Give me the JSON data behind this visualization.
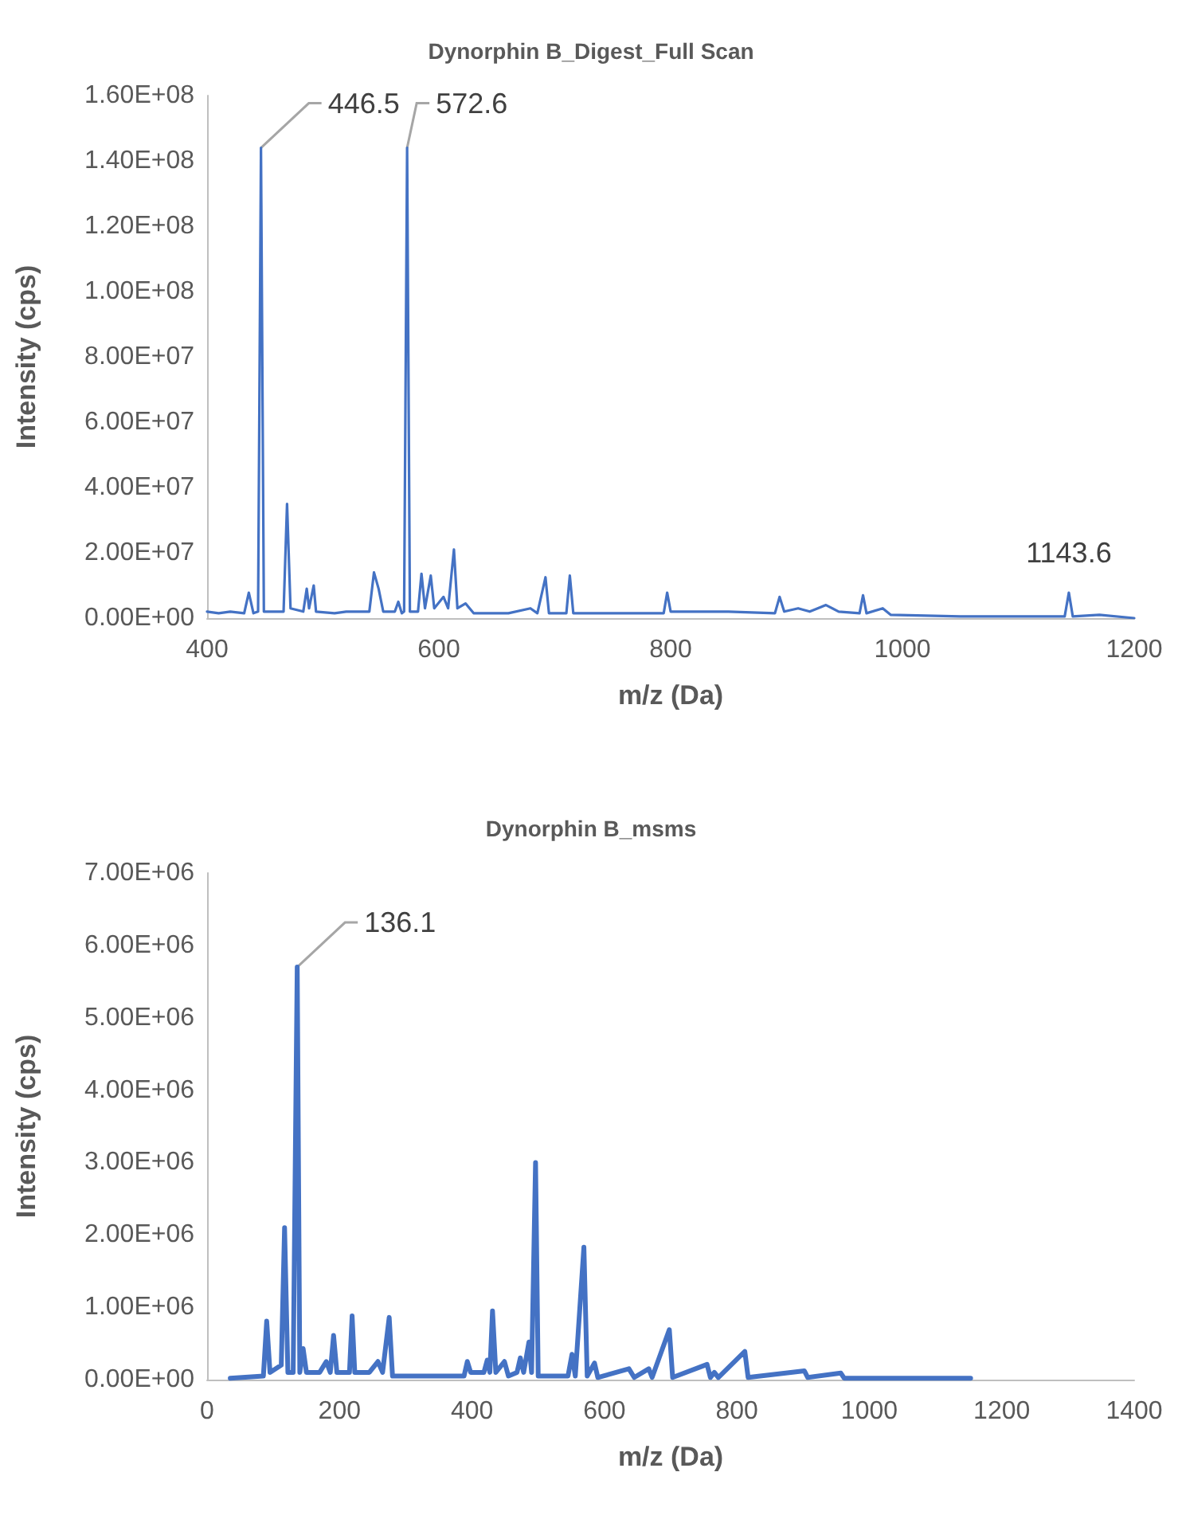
{
  "chart_data": [
    {
      "type": "line",
      "title": "Dynorphin B_Digest_Full Scan",
      "xlabel": "m/z (Da)",
      "ylabel": "Intensity (cps)",
      "x": [
        400,
        410,
        420,
        432,
        436,
        440,
        444,
        446.5,
        449,
        466,
        469,
        472,
        483,
        486,
        488,
        492,
        494,
        510,
        520,
        540,
        544,
        548,
        552,
        562,
        565,
        568,
        570,
        572.6,
        575,
        582,
        585,
        588,
        593,
        596,
        604,
        608,
        613,
        616,
        623,
        630,
        660,
        679,
        685,
        692,
        695,
        710,
        713,
        716,
        760,
        794,
        797,
        800,
        850,
        890,
        894,
        898,
        910,
        920,
        934,
        945,
        963,
        966,
        969,
        983,
        990,
        1050,
        1140,
        1143.6,
        1147,
        1170,
        1200
      ],
      "series": [
        {
          "color": "#4472c4",
          "values": [
            2000000.0,
            1500000.0,
            2000000.0,
            1500000.0,
            7800000.0,
            1500000.0,
            2000000.0,
            144000000.0,
            2000000.0,
            2000000.0,
            35000000.0,
            3000000.0,
            2000000.0,
            9000000.0,
            3000000.0,
            10000000.0,
            2000000.0,
            1500000.0,
            2000000.0,
            2000000.0,
            14000000.0,
            9000000.0,
            2000000.0,
            2000000.0,
            5000000.0,
            1500000.0,
            2000000.0,
            144000000.0,
            2000000.0,
            2000000.0,
            13600000.0,
            3000000.0,
            13000000.0,
            3000000.0,
            6500000.0,
            3000000.0,
            21000000.0,
            3000000.0,
            4500000.0,
            1500000.0,
            1500000.0,
            3000000.0,
            1500000.0,
            12500000.0,
            1500000.0,
            1500000.0,
            13000000.0,
            1500000.0,
            1500000.0,
            1500000.0,
            7800000.0,
            2000000.0,
            2000000.0,
            1500000.0,
            6500000.0,
            2000000.0,
            3000000.0,
            2000000.0,
            4000000.0,
            2000000.0,
            1500000.0,
            7000000.0,
            1500000.0,
            3000000.0,
            1000000.0,
            500000.0,
            500000.0,
            7800000.0,
            500000.0,
            1000000.0,
            0
          ]
        }
      ],
      "xlim": [
        400,
        1200
      ],
      "xticks": [
        400,
        600,
        800,
        1000,
        1200
      ],
      "ylim": [
        0,
        160000000.0
      ],
      "yticks": [
        {
          "value": 0,
          "label": "0.00E+00"
        },
        {
          "value": 20000000.0,
          "label": "2.00E+07"
        },
        {
          "value": 40000000.0,
          "label": "4.00E+07"
        },
        {
          "value": 60000000.0,
          "label": "6.00E+07"
        },
        {
          "value": 80000000.0,
          "label": "8.00E+07"
        },
        {
          "value": 100000000.0,
          "label": "1.00E+08"
        },
        {
          "value": 120000000.0,
          "label": "1.20E+08"
        },
        {
          "value": 140000000.0,
          "label": "1.40E+08"
        },
        {
          "value": 160000000.0,
          "label": "1.60E+08"
        }
      ],
      "annotations": [
        {
          "text": "446.5",
          "x": 446.5,
          "y": 144000000.0
        },
        {
          "text": "572.6",
          "x": 572.6,
          "y": 144000000.0
        },
        {
          "text": "1143.6",
          "x": 1143.6,
          "y": 7800000.0
        }
      ],
      "grid": false,
      "marker": "none",
      "line_style": "solid"
    },
    {
      "type": "line",
      "title": "Dynorphin B_msms",
      "xlabel": "m/z (Da)",
      "ylabel": "Intensity (cps)",
      "x": [
        35,
        85,
        90,
        95,
        112,
        117,
        122,
        130,
        136.1,
        140,
        145,
        150,
        170,
        180,
        186,
        191,
        196,
        215,
        219,
        223,
        245,
        258,
        265,
        275,
        280,
        350,
        388,
        393,
        398,
        418,
        423,
        427,
        431,
        436,
        449,
        455,
        468,
        473,
        478,
        486,
        490,
        496,
        500,
        545,
        551,
        556,
        569,
        574,
        585,
        590,
        637,
        645,
        667,
        672,
        698,
        703,
        755,
        760,
        766,
        772,
        812,
        817,
        902,
        907,
        957,
        962,
        1153
      ],
      "series": [
        {
          "color": "#4472c4",
          "values": [
            20000.0,
            50000.0,
            810000.0,
            100000.0,
            200000.0,
            2100000.0,
            100000.0,
            100000.0,
            5700000.0,
            100000.0,
            430000.0,
            100000.0,
            100000.0,
            250000.0,
            100000.0,
            610000.0,
            100000.0,
            100000.0,
            880000.0,
            100000.0,
            100000.0,
            250000.0,
            100000.0,
            860000.0,
            50000.0,
            50000.0,
            50000.0,
            250000.0,
            100000.0,
            100000.0,
            270000.0,
            100000.0,
            950000.0,
            100000.0,
            250000.0,
            50000.0,
            100000.0,
            300000.0,
            100000.0,
            520000.0,
            100000.0,
            3000000.0,
            50000.0,
            50000.0,
            350000.0,
            50000.0,
            1830000.0,
            50000.0,
            230000.0,
            30000.0,
            150000.0,
            30000.0,
            150000.0,
            30000.0,
            690000.0,
            30000.0,
            210000.0,
            30000.0,
            100000.0,
            30000.0,
            390000.0,
            30000.0,
            120000.0,
            30000.0,
            90000.0,
            20000.0,
            20000.0
          ]
        }
      ],
      "xlim": [
        0,
        1400
      ],
      "xticks": [
        0,
        200,
        400,
        600,
        800,
        1000,
        1200,
        1400
      ],
      "ylim": [
        0,
        7000000.0
      ],
      "yticks": [
        {
          "value": 0,
          "label": "0.00E+00"
        },
        {
          "value": 1000000.0,
          "label": "1.00E+06"
        },
        {
          "value": 2000000.0,
          "label": "2.00E+06"
        },
        {
          "value": 3000000.0,
          "label": "3.00E+06"
        },
        {
          "value": 4000000.0,
          "label": "4.00E+06"
        },
        {
          "value": 5000000.0,
          "label": "5.00E+06"
        },
        {
          "value": 6000000.0,
          "label": "6.00E+06"
        },
        {
          "value": 7000000.0,
          "label": "7.00E+06"
        }
      ],
      "annotations": [
        {
          "text": "136.1",
          "x": 136.1,
          "y": 5700000.0
        }
      ],
      "grid": false,
      "marker": "none",
      "line_style": "solid"
    }
  ]
}
